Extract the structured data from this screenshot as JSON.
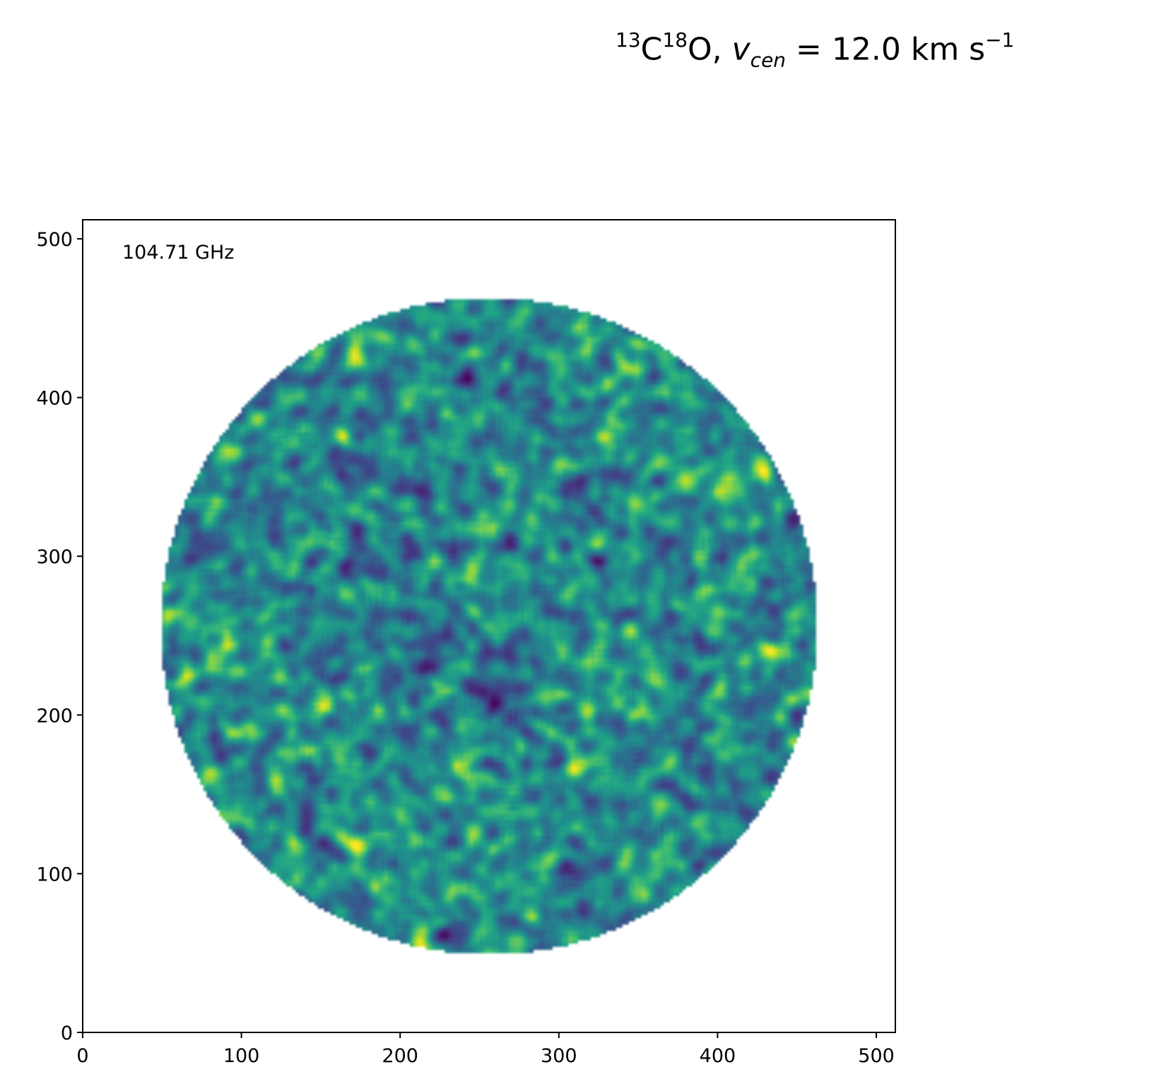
{
  "title": {
    "iso1_sup": "13",
    "iso1": "C",
    "iso2_sup": "18",
    "iso2": "O, ",
    "var": "v",
    "var_sub": "cen",
    "eq": " =  12.0 km s",
    "unit_sup": "−1"
  },
  "chart_data": {
    "type": "heatmap",
    "title": "13C18O, v_cen =  12.0 km s−1",
    "annotation": "104.71 GHz",
    "xlabel": "",
    "ylabel": "",
    "xlim": [
      0,
      512
    ],
    "ylim": [
      0,
      512
    ],
    "x_ticks": [
      0,
      100,
      200,
      300,
      400,
      500
    ],
    "y_ticks": [
      0,
      100,
      200,
      300,
      400,
      500
    ],
    "image_extent": [
      0,
      512,
      0,
      512
    ],
    "circle": {
      "center": [
        256,
        256
      ],
      "radius": 207
    },
    "colormap": "viridis",
    "colorbar": false,
    "grid": false,
    "description_of_values": "noise-like emission map inside circular primary-beam mask; values not labeled"
  },
  "colors": {
    "viridis_low": "#440154",
    "viridis_mid": "#21918c",
    "viridis_high": "#fde725",
    "axis": "#000000",
    "background": "#ffffff"
  }
}
